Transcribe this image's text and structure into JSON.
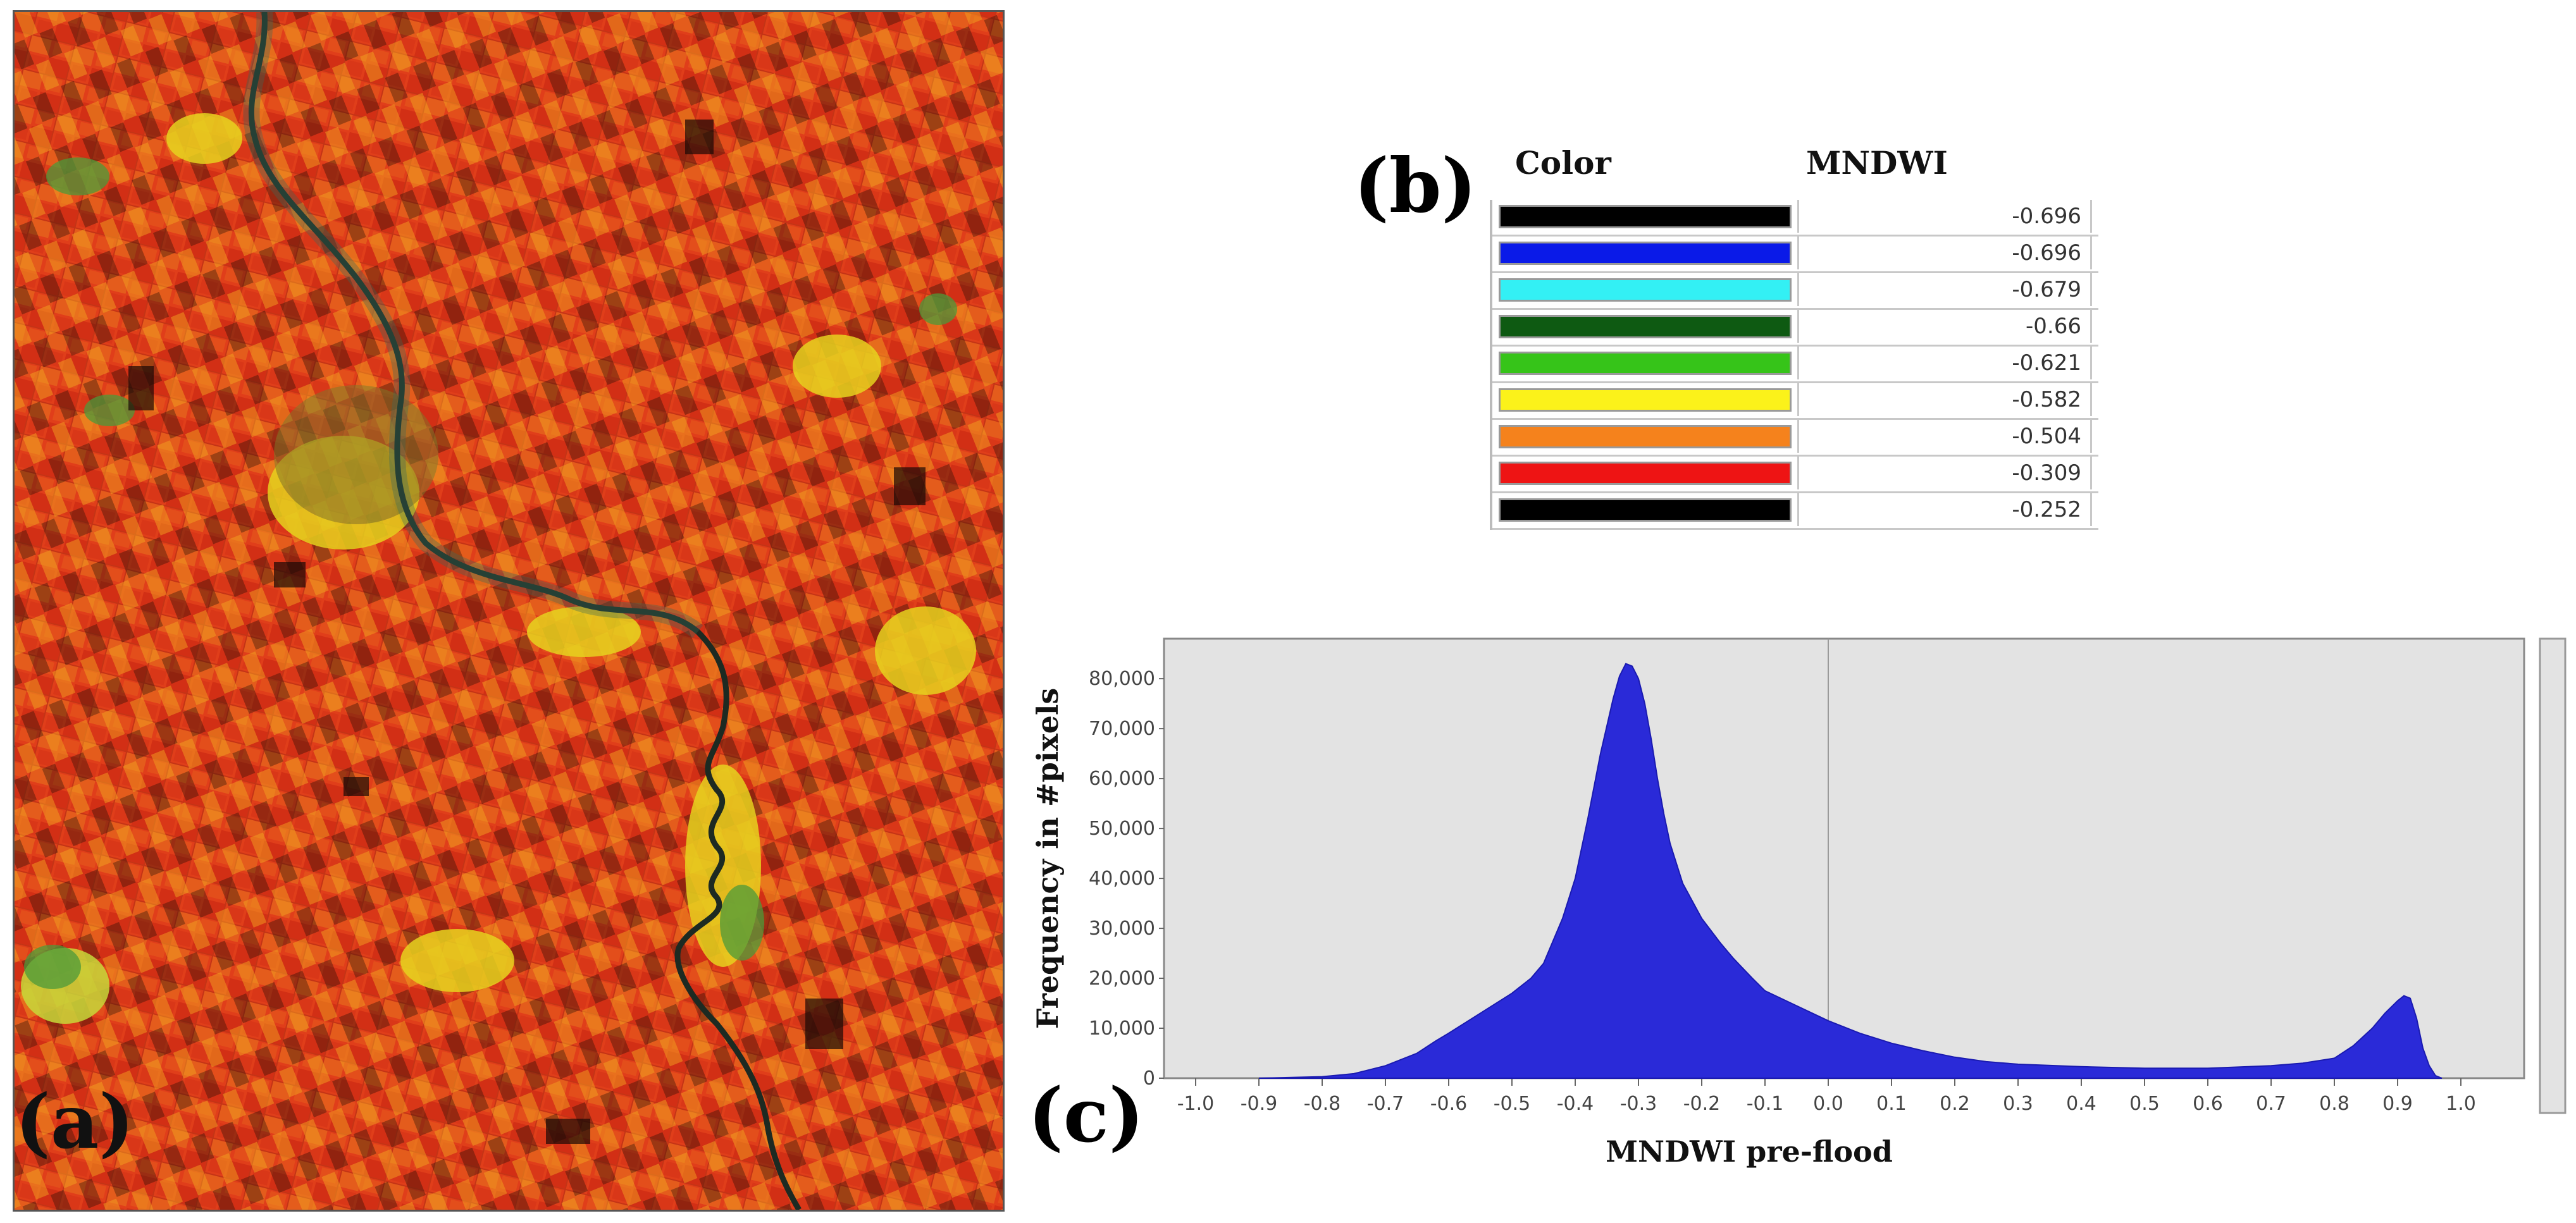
{
  "panels": {
    "a": "(a)",
    "b": "(b)",
    "c": "(c)"
  },
  "legend": {
    "col_color": "Color",
    "col_value": "MNDWI",
    "entries": [
      {
        "color": "#000000",
        "value": "-0.696"
      },
      {
        "color": "#0a1ae8",
        "value": "-0.696"
      },
      {
        "color": "#33f0f4",
        "value": "-0.679"
      },
      {
        "color": "#0e5a12",
        "value": "-0.66"
      },
      {
        "color": "#36c419",
        "value": "-0.621"
      },
      {
        "color": "#fbf21a",
        "value": "-0.582"
      },
      {
        "color": "#f5821c",
        "value": "-0.504"
      },
      {
        "color": "#ee1414",
        "value": "-0.309"
      },
      {
        "color": "#000000",
        "value": "-0.252"
      }
    ]
  },
  "map_colors": {
    "base": "#e8461a",
    "field_dark": "#c9260f",
    "field_light": "#f18a1e",
    "yellow": "#e6d21e",
    "green": "#4c9a3a",
    "river": "#1d2a22"
  },
  "chart_data": {
    "type": "area",
    "title": "",
    "xlabel": "MNDWI pre-flood",
    "ylabel": "Frequency in #pixels",
    "xlim": [
      -1.05,
      1.1
    ],
    "ylim": [
      0,
      88000
    ],
    "x_ticks": [
      "-1.0",
      "-0.9",
      "-0.8",
      "-0.7",
      "-0.6",
      "-0.5",
      "-0.4",
      "-0.3",
      "-0.2",
      "-0.1",
      "0.0",
      "0.1",
      "0.2",
      "0.3",
      "0.4",
      "0.5",
      "0.6",
      "0.7",
      "0.8",
      "0.9",
      "1.0"
    ],
    "y_ticks": [
      "0",
      "10,000",
      "20,000",
      "30,000",
      "40,000",
      "50,000",
      "60,000",
      "70,000",
      "80,000"
    ],
    "fill_color": "#2a2ad8",
    "background": "#e3e3e3",
    "x": [
      -0.9,
      -0.8,
      -0.75,
      -0.7,
      -0.65,
      -0.62,
      -0.6,
      -0.55,
      -0.5,
      -0.47,
      -0.45,
      -0.42,
      -0.4,
      -0.38,
      -0.36,
      -0.34,
      -0.33,
      -0.32,
      -0.31,
      -0.3,
      -0.29,
      -0.28,
      -0.27,
      -0.26,
      -0.25,
      -0.23,
      -0.2,
      -0.17,
      -0.15,
      -0.12,
      -0.1,
      -0.05,
      0.0,
      0.05,
      0.1,
      0.15,
      0.2,
      0.25,
      0.3,
      0.4,
      0.5,
      0.6,
      0.7,
      0.75,
      0.8,
      0.83,
      0.86,
      0.88,
      0.9,
      0.91,
      0.92,
      0.93,
      0.94,
      0.95,
      0.96,
      0.97
    ],
    "values": [
      0,
      300,
      900,
      2500,
      5000,
      7500,
      9000,
      13000,
      17000,
      20000,
      23000,
      32000,
      40000,
      52000,
      65000,
      76000,
      80500,
      83000,
      82500,
      80000,
      75000,
      68000,
      60000,
      53000,
      47000,
      39000,
      32000,
      27000,
      24000,
      20000,
      17500,
      14500,
      11500,
      9000,
      7000,
      5500,
      4200,
      3300,
      2800,
      2300,
      2000,
      2000,
      2500,
      3000,
      4000,
      6500,
      10000,
      13000,
      15500,
      16500,
      16000,
      12000,
      6000,
      2500,
      500,
      0
    ]
  }
}
